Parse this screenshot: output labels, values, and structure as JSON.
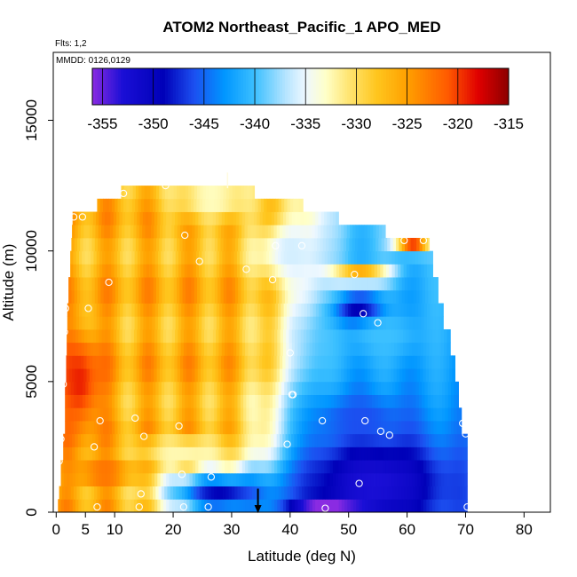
{
  "chart_data": {
    "type": "heatmap",
    "title": "ATOM2 Northeast_Pacific_1 APO_MED",
    "note_flights": "Flts: 1,2",
    "note_dates": "MMDD: 0126,0129",
    "xlabel": "Latitude (deg N)",
    "ylabel": "Altitude (m)",
    "xlim": [
      -0.5,
      84.5
    ],
    "ylim": [
      0,
      17600
    ],
    "x_ticks": [
      0,
      5,
      10,
      20,
      30,
      40,
      50,
      60,
      70,
      80
    ],
    "x_tick_labels": [
      "0",
      "5",
      "10",
      "20",
      "30",
      "40",
      "50",
      "60",
      "70",
      "80"
    ],
    "y_ticks": [
      0,
      5000,
      10000,
      15000
    ],
    "y_tick_labels": [
      "0",
      "5000",
      "10000",
      "15000"
    ],
    "colorbar": {
      "range": [
        -356,
        -315
      ],
      "ticks": [
        -355,
        -350,
        -345,
        -340,
        -335,
        -330,
        -325,
        -320,
        -315
      ],
      "tick_labels": [
        "-355",
        "-350",
        "-345",
        "-340",
        "-335",
        "-330",
        "-325",
        "-320",
        "-315"
      ],
      "stops": [
        {
          "value": -356,
          "color": "#8a2be2"
        },
        {
          "value": -353,
          "color": "#1a0fd6"
        },
        {
          "value": -349,
          "color": "#0000b8"
        },
        {
          "value": -346,
          "color": "#1c4ff0"
        },
        {
          "value": -343,
          "color": "#0096ff"
        },
        {
          "value": -340,
          "color": "#3cc0ff"
        },
        {
          "value": -337,
          "color": "#b4e4ff"
        },
        {
          "value": -335,
          "color": "#eef8ff"
        },
        {
          "value": -333,
          "color": "#ffffc8"
        },
        {
          "value": -331,
          "color": "#ffe87a"
        },
        {
          "value": -328,
          "color": "#ffc61e"
        },
        {
          "value": -325,
          "color": "#ffa000"
        },
        {
          "value": -321,
          "color": "#ff5a00"
        },
        {
          "value": -318,
          "color": "#e00000"
        },
        {
          "value": -315,
          "color": "#8b0000"
        }
      ]
    },
    "data_region": {
      "bands": [
        {
          "alt_min": 0,
          "alt_max": 500,
          "lat_min": 0.3,
          "lat_max": 70.3
        },
        {
          "alt_min": 500,
          "alt_max": 1000,
          "lat_min": 0.5,
          "lat_max": 70.3
        },
        {
          "alt_min": 1000,
          "alt_max": 2000,
          "lat_min": 0.8,
          "lat_max": 70.3
        },
        {
          "alt_min": 2000,
          "alt_max": 3000,
          "lat_min": 1.2,
          "lat_max": 70.3
        },
        {
          "alt_min": 3000,
          "alt_max": 4000,
          "lat_min": 1.5,
          "lat_max": 69.3
        },
        {
          "alt_min": 4000,
          "alt_max": 5000,
          "lat_min": 1.5,
          "lat_max": 68.8
        },
        {
          "alt_min": 5000,
          "alt_max": 6000,
          "lat_min": 1.7,
          "lat_max": 68.2
        },
        {
          "alt_min": 6000,
          "alt_max": 7000,
          "lat_min": 1.8,
          "lat_max": 67.4
        },
        {
          "alt_min": 7000,
          "alt_max": 8000,
          "lat_min": 1.9,
          "lat_max": 66.2
        },
        {
          "alt_min": 8000,
          "alt_max": 9000,
          "lat_min": 2.1,
          "lat_max": 65.3
        },
        {
          "alt_min": 9000,
          "alt_max": 10000,
          "lat_min": 2.4,
          "lat_max": 64.4
        },
        {
          "alt_min": 10000,
          "alt_max": 10500,
          "lat_min": 2.6,
          "lat_max": 63.8
        },
        {
          "alt_min": 10500,
          "alt_max": 11000,
          "lat_min": 2.7,
          "lat_max": 56.3
        },
        {
          "alt_min": 11000,
          "alt_max": 11500,
          "lat_min": 2.8,
          "lat_max": 48.3
        },
        {
          "alt_min": 11500,
          "alt_max": 12000,
          "lat_min": 7.0,
          "lat_max": 42.2
        },
        {
          "alt_min": 12000,
          "alt_max": 12500,
          "lat_min": 11.1,
          "lat_max": 33.9
        }
      ],
      "features": [
        {
          "lat": 54.5,
          "alt": 1100,
          "sigma_lat": 12,
          "sigma_alt": 1800,
          "value": -353
        },
        {
          "lat": 46,
          "alt": 250,
          "sigma_lat": 6,
          "sigma_alt": 300,
          "value": -357
        },
        {
          "lat": 28,
          "alt": 700,
          "sigma_lat": 10,
          "sigma_alt": 900,
          "value": -349
        },
        {
          "lat": 52,
          "alt": 7700,
          "sigma_lat": 4,
          "sigma_alt": 550,
          "value": -352
        },
        {
          "lat": 56,
          "alt": 6800,
          "sigma_lat": 7,
          "sigma_alt": 900,
          "value": -340
        },
        {
          "lat": 52,
          "alt": 3600,
          "sigma_lat": 8,
          "sigma_alt": 900,
          "value": -346
        },
        {
          "lat": 40,
          "alt": 10000,
          "sigma_lat": 6,
          "sigma_alt": 1200,
          "value": -336
        },
        {
          "lat": 27,
          "alt": 12000,
          "sigma_lat": 8,
          "sigma_alt": 900,
          "value": -333
        },
        {
          "lat": 22,
          "alt": 2400,
          "sigma_lat": 9,
          "sigma_alt": 500,
          "value": -333
        },
        {
          "lat": 8,
          "alt": 1500,
          "sigma_lat": 6,
          "sigma_alt": 500,
          "value": -322
        },
        {
          "lat": 4,
          "alt": 5000,
          "sigma_lat": 4,
          "sigma_alt": 2000,
          "value": -319
        },
        {
          "lat": 61,
          "alt": 10400,
          "sigma_lat": 3,
          "sigma_alt": 400,
          "value": -317
        },
        {
          "lat": 52,
          "alt": 9100,
          "sigma_lat": 5,
          "sigma_alt": 300,
          "value": -322
        }
      ]
    },
    "observations": [
      {
        "lat": 0.5,
        "alt": 1950
      },
      {
        "lat": 0.8,
        "alt": 2800
      },
      {
        "lat": 1.2,
        "alt": 4900
      },
      {
        "lat": 1.4,
        "alt": 6900
      },
      {
        "lat": 1.6,
        "alt": 7800
      },
      {
        "lat": 3.0,
        "alt": 11300
      },
      {
        "lat": 4.5,
        "alt": 11300
      },
      {
        "lat": 5.5,
        "alt": 7800
      },
      {
        "lat": 6.5,
        "alt": 2500
      },
      {
        "lat": 7.0,
        "alt": 200
      },
      {
        "lat": 7.5,
        "alt": 3500
      },
      {
        "lat": 9.0,
        "alt": 8800
      },
      {
        "lat": 11.5,
        "alt": 12200
      },
      {
        "lat": 13.5,
        "alt": 3600
      },
      {
        "lat": 14.2,
        "alt": 200
      },
      {
        "lat": 14.5,
        "alt": 700
      },
      {
        "lat": 15.0,
        "alt": 2900
      },
      {
        "lat": 18.7,
        "alt": 12500
      },
      {
        "lat": 21.0,
        "alt": 3300
      },
      {
        "lat": 21.5,
        "alt": 1450
      },
      {
        "lat": 21.8,
        "alt": 200
      },
      {
        "lat": 22.0,
        "alt": 10600
      },
      {
        "lat": 24.5,
        "alt": 9600
      },
      {
        "lat": 26.0,
        "alt": 200
      },
      {
        "lat": 26.5,
        "alt": 1350
      },
      {
        "lat": 32.5,
        "alt": 9300
      },
      {
        "lat": 37.0,
        "alt": 8900
      },
      {
        "lat": 37.5,
        "alt": 10200
      },
      {
        "lat": 39.5,
        "alt": 2600
      },
      {
        "lat": 40.0,
        "alt": 6100
      },
      {
        "lat": 40.3,
        "alt": 4500
      },
      {
        "lat": 40.5,
        "alt": 4500
      },
      {
        "lat": 42.0,
        "alt": 10200
      },
      {
        "lat": 45.5,
        "alt": 3500
      },
      {
        "lat": 46.0,
        "alt": 150
      },
      {
        "lat": 51.0,
        "alt": 9100
      },
      {
        "lat": 51.8,
        "alt": 1100
      },
      {
        "lat": 52.5,
        "alt": 7600
      },
      {
        "lat": 52.8,
        "alt": 3500
      },
      {
        "lat": 55.0,
        "alt": 7250
      },
      {
        "lat": 55.5,
        "alt": 3100
      },
      {
        "lat": 57.0,
        "alt": 2950
      },
      {
        "lat": 59.5,
        "alt": 10400
      },
      {
        "lat": 62.8,
        "alt": 10400
      },
      {
        "lat": 69.5,
        "alt": 3400
      },
      {
        "lat": 70.0,
        "alt": 3000
      },
      {
        "lat": 70.3,
        "alt": 200
      }
    ],
    "marker": {
      "lat": 34.5,
      "alt": 900,
      "direction": "down"
    },
    "top_tick": {
      "lat": 29.3,
      "alt": 13000
    }
  }
}
